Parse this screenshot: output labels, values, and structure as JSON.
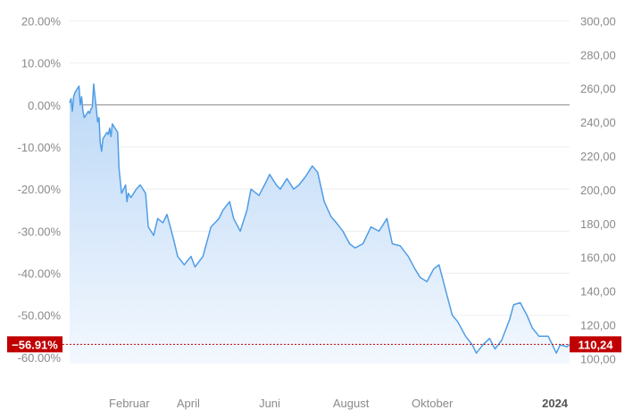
{
  "chart_data": {
    "type": "area",
    "grid": true,
    "y_left": {
      "ticks": [
        20,
        10,
        0,
        -10,
        -20,
        -30,
        -40,
        -50,
        -60
      ],
      "tick_labels": [
        "20.00%",
        "10.00%",
        "0.00%",
        "-10.00%",
        "-20.00%",
        "-30.00%",
        "-40.00%",
        "-50.00%",
        "-60.00%"
      ],
      "range": [
        -61.5,
        22
      ]
    },
    "y_right": {
      "ticks": [
        300,
        280,
        260,
        240,
        220,
        200,
        180,
        160,
        140,
        120,
        100
      ],
      "tick_labels": [
        "300,00",
        "280,00",
        "260,00",
        "240,00",
        "220,00",
        "200,00",
        "180,00",
        "160,00",
        "140,00",
        "120,00",
        "100,00"
      ],
      "range": [
        97,
        305
      ]
    },
    "x_axis": {
      "range": [
        "2023-01-02",
        "2024-01-12"
      ],
      "ticks": [
        {
          "date": "2023-02-01",
          "label": "Februar",
          "bold": false
        },
        {
          "date": "2023-04-01",
          "label": "April",
          "bold": false
        },
        {
          "date": "2023-06-01",
          "label": "Juni",
          "bold": false
        },
        {
          "date": "2023-08-01",
          "label": "August",
          "bold": false
        },
        {
          "date": "2023-10-01",
          "label": "Oktober",
          "bold": false
        },
        {
          "date": "2024-01-01",
          "label": "2024",
          "bold": true
        }
      ]
    },
    "baseline_pct": 0,
    "current": {
      "pct": -56.91,
      "pct_label": "−56.91%",
      "price": 110.24,
      "price_label": "110,24"
    },
    "colors": {
      "line": "#4f9de6",
      "fill_top": "#bcd8f7",
      "fill_bottom": "#f3f8fe",
      "badge": "#c00000",
      "grid": "#eeeeee",
      "baseline": "#888888"
    },
    "series": [
      {
        "x": [
          "2023-01-02",
          "2023-01-03",
          "2023-01-04",
          "2023-01-05",
          "2023-01-06",
          "2023-01-09",
          "2023-01-10",
          "2023-01-11",
          "2023-01-12",
          "2023-01-13",
          "2023-01-16",
          "2023-01-17",
          "2023-01-18",
          "2023-01-19",
          "2023-01-20",
          "2023-01-23",
          "2023-01-24",
          "2023-01-25",
          "2023-01-26",
          "2023-01-27",
          "2023-01-30",
          "2023-01-31",
          "2023-02-01",
          "2023-02-02",
          "2023-02-03",
          "2023-02-06",
          "2023-02-07",
          "2023-02-08",
          "2023-02-09",
          "2023-02-10",
          "2023-02-13",
          "2023-02-14",
          "2023-02-15",
          "2023-02-17",
          "2023-02-21",
          "2023-02-24",
          "2023-02-28",
          "2023-03-02",
          "2023-03-06",
          "2023-03-09",
          "2023-03-13",
          "2023-03-16",
          "2023-03-21",
          "2023-03-24",
          "2023-03-29",
          "2023-04-03",
          "2023-04-06",
          "2023-04-12",
          "2023-04-18",
          "2023-04-24",
          "2023-04-27",
          "2023-05-02",
          "2023-05-05",
          "2023-05-10",
          "2023-05-15",
          "2023-05-18",
          "2023-05-24",
          "2023-05-29",
          "2023-06-01",
          "2023-06-06",
          "2023-06-09",
          "2023-06-14",
          "2023-06-19",
          "2023-06-23",
          "2023-06-28",
          "2023-07-03",
          "2023-07-07",
          "2023-07-12",
          "2023-07-17",
          "2023-07-21",
          "2023-07-26",
          "2023-07-31",
          "2023-08-04",
          "2023-08-10",
          "2023-08-16",
          "2023-08-22",
          "2023-08-28",
          "2023-09-01",
          "2023-09-07",
          "2023-09-13",
          "2023-09-18",
          "2023-09-22",
          "2023-09-27",
          "2023-10-02",
          "2023-10-06",
          "2023-10-11",
          "2023-10-16",
          "2023-10-20",
          "2023-10-26",
          "2023-10-31",
          "2023-11-03",
          "2023-11-08",
          "2023-11-13",
          "2023-11-17",
          "2023-11-22",
          "2023-11-28",
          "2023-12-01",
          "2023-12-06",
          "2023-12-11",
          "2023-12-15",
          "2023-12-20",
          "2023-12-27",
          "2024-01-02",
          "2024-01-05",
          "2024-01-10",
          "2024-01-12"
        ],
        "pct": [
          0.5,
          1.5,
          -1.5,
          2.0,
          3.0,
          4.5,
          0.0,
          2.0,
          -1.5,
          -3.0,
          -1.5,
          -2.0,
          -1.0,
          -0.5,
          5.0,
          -4.0,
          -3.0,
          -9.0,
          -11.0,
          -8.0,
          -6.5,
          -7.0,
          -5.5,
          -7.5,
          -4.5,
          -6.0,
          -6.5,
          -15.0,
          -18.0,
          -21.0,
          -19.0,
          -23.0,
          -21.0,
          -22.0,
          -20.0,
          -19.0,
          -21.0,
          -29.0,
          -31.0,
          -27.0,
          -28.0,
          -26.0,
          -32.0,
          -36.0,
          -38.0,
          -36.0,
          -38.5,
          -36.0,
          -29.0,
          -27.0,
          -25.0,
          -23.0,
          -27.0,
          -30.0,
          -25.0,
          -20.0,
          -21.5,
          -18.5,
          -16.5,
          -19.0,
          -20.0,
          -17.5,
          -20.0,
          -19.0,
          -17.0,
          -14.5,
          -16.0,
          -23.0,
          -26.5,
          -28.0,
          -30.0,
          -33.0,
          -34.0,
          -33.0,
          -29.0,
          -30.0,
          -27.0,
          -33.0,
          -33.5,
          -36.0,
          -39.0,
          -41.0,
          -42.0,
          -39.0,
          -38.0,
          -44.0,
          -50.0,
          -51.5,
          -55.0,
          -57.0,
          -59.0,
          -57.0,
          -55.5,
          -58.0,
          -56.0,
          -51.0,
          -47.5,
          -47.0,
          -50.0,
          -53.0,
          -55.0,
          -55.0,
          -59.0,
          -57.0,
          -57.5,
          -56.91
        ]
      }
    ]
  }
}
